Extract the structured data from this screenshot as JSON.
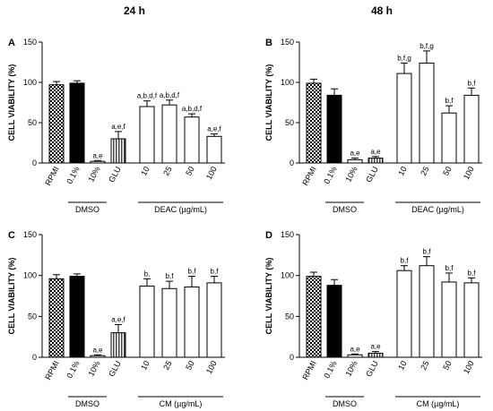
{
  "columns": [
    "24 h",
    "48 h"
  ],
  "chart_data": [
    {
      "type": "bar",
      "panel": "A",
      "ylabel": "CELL VIABILITY (%)",
      "ylim": [
        0,
        150
      ],
      "yticks": [
        0,
        50,
        100,
        150
      ],
      "categories": [
        "RPMI",
        "0.1%",
        "10%",
        "GLU",
        "10",
        "25",
        "50",
        "100"
      ],
      "values": [
        97,
        99,
        2,
        30,
        70,
        72,
        57,
        33
      ],
      "errors": [
        4,
        3,
        1,
        9,
        7,
        6,
        4,
        3
      ],
      "annotations": [
        "",
        "",
        "a,e",
        "a,e,f",
        "a,b,d,f",
        "a,b,d,f",
        "a,b,d,f",
        "a,e,f"
      ],
      "groups": [
        {
          "label": "DMSO",
          "from": 1,
          "to": 2
        },
        {
          "label": "DEAC (µg/mL)",
          "from": 4,
          "to": 7
        }
      ]
    },
    {
      "type": "bar",
      "panel": "B",
      "ylabel": "CELL VIABILITY (%)",
      "ylim": [
        0,
        150
      ],
      "yticks": [
        0,
        50,
        100,
        150
      ],
      "categories": [
        "RPMI",
        "0.1%",
        "10%",
        "GLU",
        "10",
        "25",
        "50",
        "100"
      ],
      "values": [
        99,
        84,
        4,
        6,
        111,
        124,
        62,
        84
      ],
      "errors": [
        5,
        8,
        2,
        2,
        13,
        15,
        9,
        9
      ],
      "annotations": [
        "",
        "",
        "a,e",
        "a,e",
        "b,f,g",
        "b,f,g",
        "b,f",
        "b,f"
      ],
      "groups": [
        {
          "label": "DMSO",
          "from": 1,
          "to": 2
        },
        {
          "label": "DEAC (µg/mL)",
          "from": 4,
          "to": 7
        }
      ]
    },
    {
      "type": "bar",
      "panel": "C",
      "ylabel": "CELL VIABILITY (%)",
      "ylim": [
        0,
        150
      ],
      "yticks": [
        0,
        50,
        100,
        150
      ],
      "categories": [
        "RPMI",
        "0.1%",
        "10%",
        "GLU",
        "10",
        "25",
        "50",
        "100"
      ],
      "values": [
        96,
        99,
        2,
        30,
        87,
        84,
        86,
        91
      ],
      "errors": [
        5,
        3,
        1,
        10,
        9,
        9,
        13,
        8
      ],
      "annotations": [
        "",
        "",
        "a,e",
        "a,e,f",
        "b,",
        "b,f",
        "b,f",
        "b,f"
      ],
      "groups": [
        {
          "label": "DMSO",
          "from": 1,
          "to": 2
        },
        {
          "label": "CM (µg/mL)",
          "from": 4,
          "to": 7
        }
      ]
    },
    {
      "type": "bar",
      "panel": "D",
      "ylabel": "CELL VIABILITY (%)",
      "ylim": [
        0,
        150
      ],
      "yticks": [
        0,
        50,
        100,
        150
      ],
      "categories": [
        "RPMI",
        "0.1%",
        "10%",
        "GLU",
        "10",
        "25",
        "50",
        "100"
      ],
      "values": [
        99,
        88,
        3,
        5,
        106,
        112,
        92,
        91
      ],
      "errors": [
        5,
        7,
        1,
        2,
        6,
        11,
        11,
        6
      ],
      "annotations": [
        "",
        "",
        "a,e",
        "a,e",
        "b,f",
        "b,f",
        "b,f",
        "b,f"
      ],
      "groups": [
        {
          "label": "DMSO",
          "from": 1,
          "to": 2
        },
        {
          "label": "CM (µg/mL)",
          "from": 4,
          "to": 7
        }
      ]
    }
  ]
}
